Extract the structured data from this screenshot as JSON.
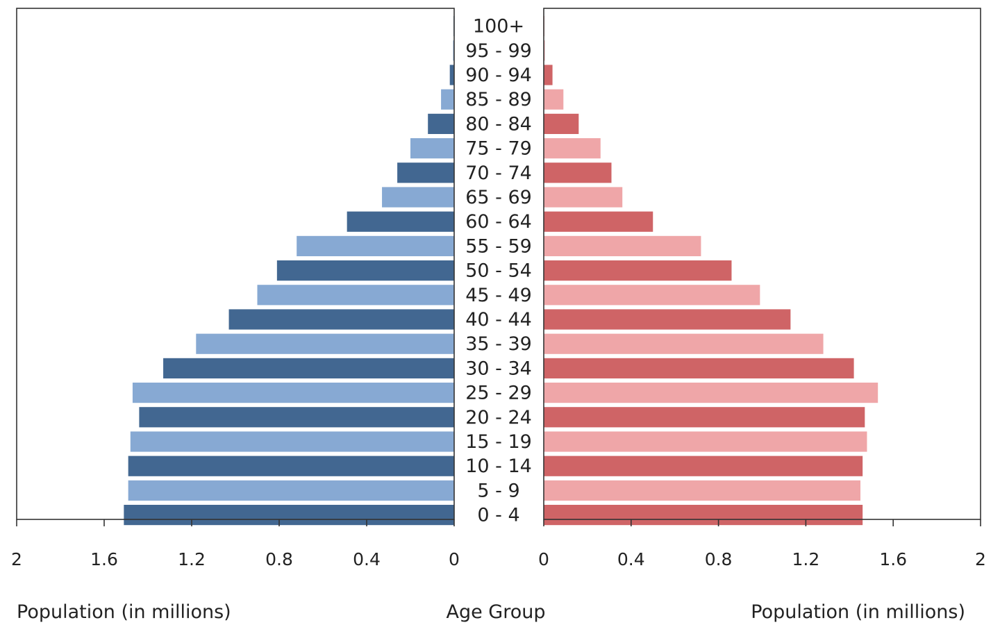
{
  "chart_data": {
    "type": "bar",
    "orientation": "horizontal-pyramid",
    "title": "",
    "categories": [
      "0 - 4",
      "5 - 9",
      "10 - 14",
      "15 - 19",
      "20 - 24",
      "25 - 29",
      "30 - 34",
      "35 - 39",
      "40 - 44",
      "45 - 49",
      "50 - 54",
      "55 - 59",
      "60 - 64",
      "65 - 69",
      "70 - 74",
      "75 - 79",
      "80 - 84",
      "85 - 89",
      "90 - 94",
      "95 - 99",
      "100+"
    ],
    "category_axis_title": "Age Group",
    "left_axis_title": "Population (in millions)",
    "right_axis_title": "Population (in millions)",
    "left_ticks": [
      "2",
      "1.6",
      "1.2",
      "0.8",
      "0.4",
      "0"
    ],
    "right_ticks": [
      "0",
      "0.4",
      "0.8",
      "1.2",
      "1.6",
      "2"
    ],
    "xlim": [
      0,
      2
    ],
    "grid": false,
    "series": [
      {
        "side": "left",
        "values": [
          1.51,
          1.49,
          1.49,
          1.48,
          1.44,
          1.47,
          1.33,
          1.18,
          1.03,
          0.9,
          0.81,
          0.72,
          0.49,
          0.33,
          0.26,
          0.2,
          0.12,
          0.06,
          0.02,
          0.005,
          0.003
        ],
        "colors": [
          "#426791",
          "#87a9d3"
        ]
      },
      {
        "side": "right",
        "values": [
          1.46,
          1.45,
          1.46,
          1.48,
          1.47,
          1.53,
          1.42,
          1.28,
          1.13,
          0.99,
          0.86,
          0.72,
          0.5,
          0.36,
          0.31,
          0.26,
          0.16,
          0.09,
          0.04,
          0.005,
          0.003
        ],
        "colors": [
          "#cf6466",
          "#efa6a8"
        ]
      }
    ]
  }
}
